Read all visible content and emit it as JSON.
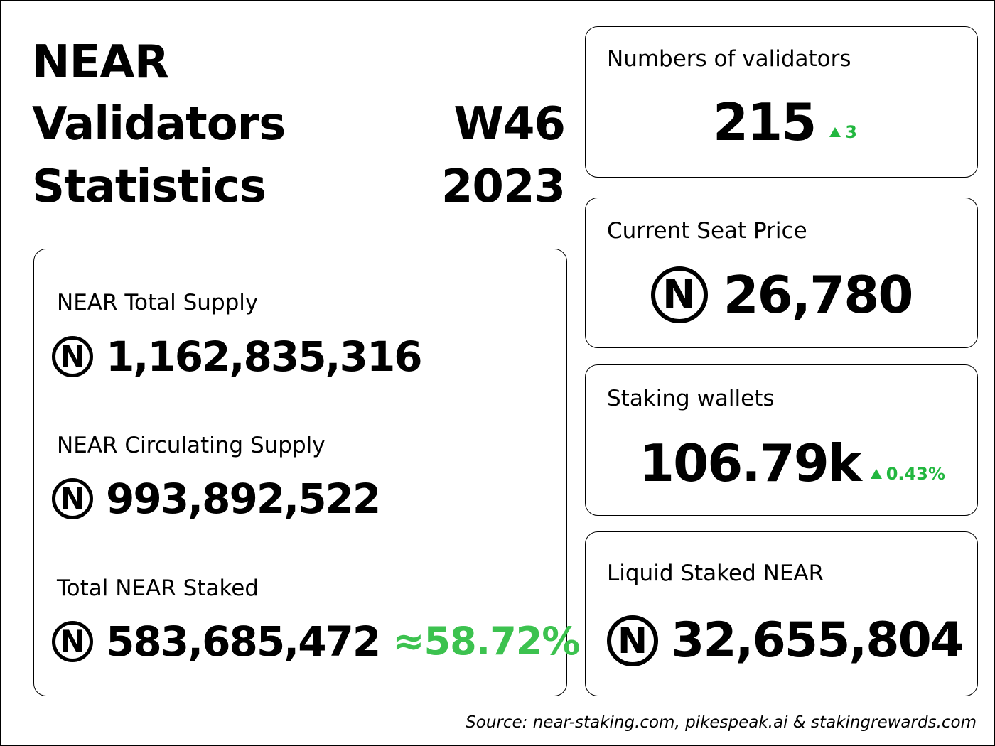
{
  "header": {
    "title_line1": "NEAR",
    "title_line2": "Validators",
    "title_line3": "Statistics",
    "week": "W46",
    "year": "2023"
  },
  "near_symbol": "N",
  "supply_card": {
    "total_supply_label": "NEAR Total Supply",
    "total_supply_value": "1,162,835,316",
    "circulating_label": "NEAR Circulating Supply",
    "circulating_value": "993,892,522",
    "staked_label": "Total NEAR Staked",
    "staked_value": "583,685,472",
    "staked_pct": "≈58.72%"
  },
  "validators_card": {
    "label": "Numbers of validators",
    "value": "215",
    "delta": "3"
  },
  "seat_price_card": {
    "label": "Current Seat Price",
    "value": "26,780"
  },
  "wallets_card": {
    "label": "Staking wallets",
    "value": "106.79k",
    "delta": "0.43%"
  },
  "liquid_card": {
    "label": "Liquid Staked NEAR",
    "value": "32,655,804"
  },
  "footer": {
    "source": "Source: near-staking.com, pikespeak.ai & stakingrewards.com"
  },
  "colors": {
    "accent_green": "#22b73f",
    "pct_green": "#3cc24f",
    "text": "#000000",
    "background": "#ffffff"
  }
}
